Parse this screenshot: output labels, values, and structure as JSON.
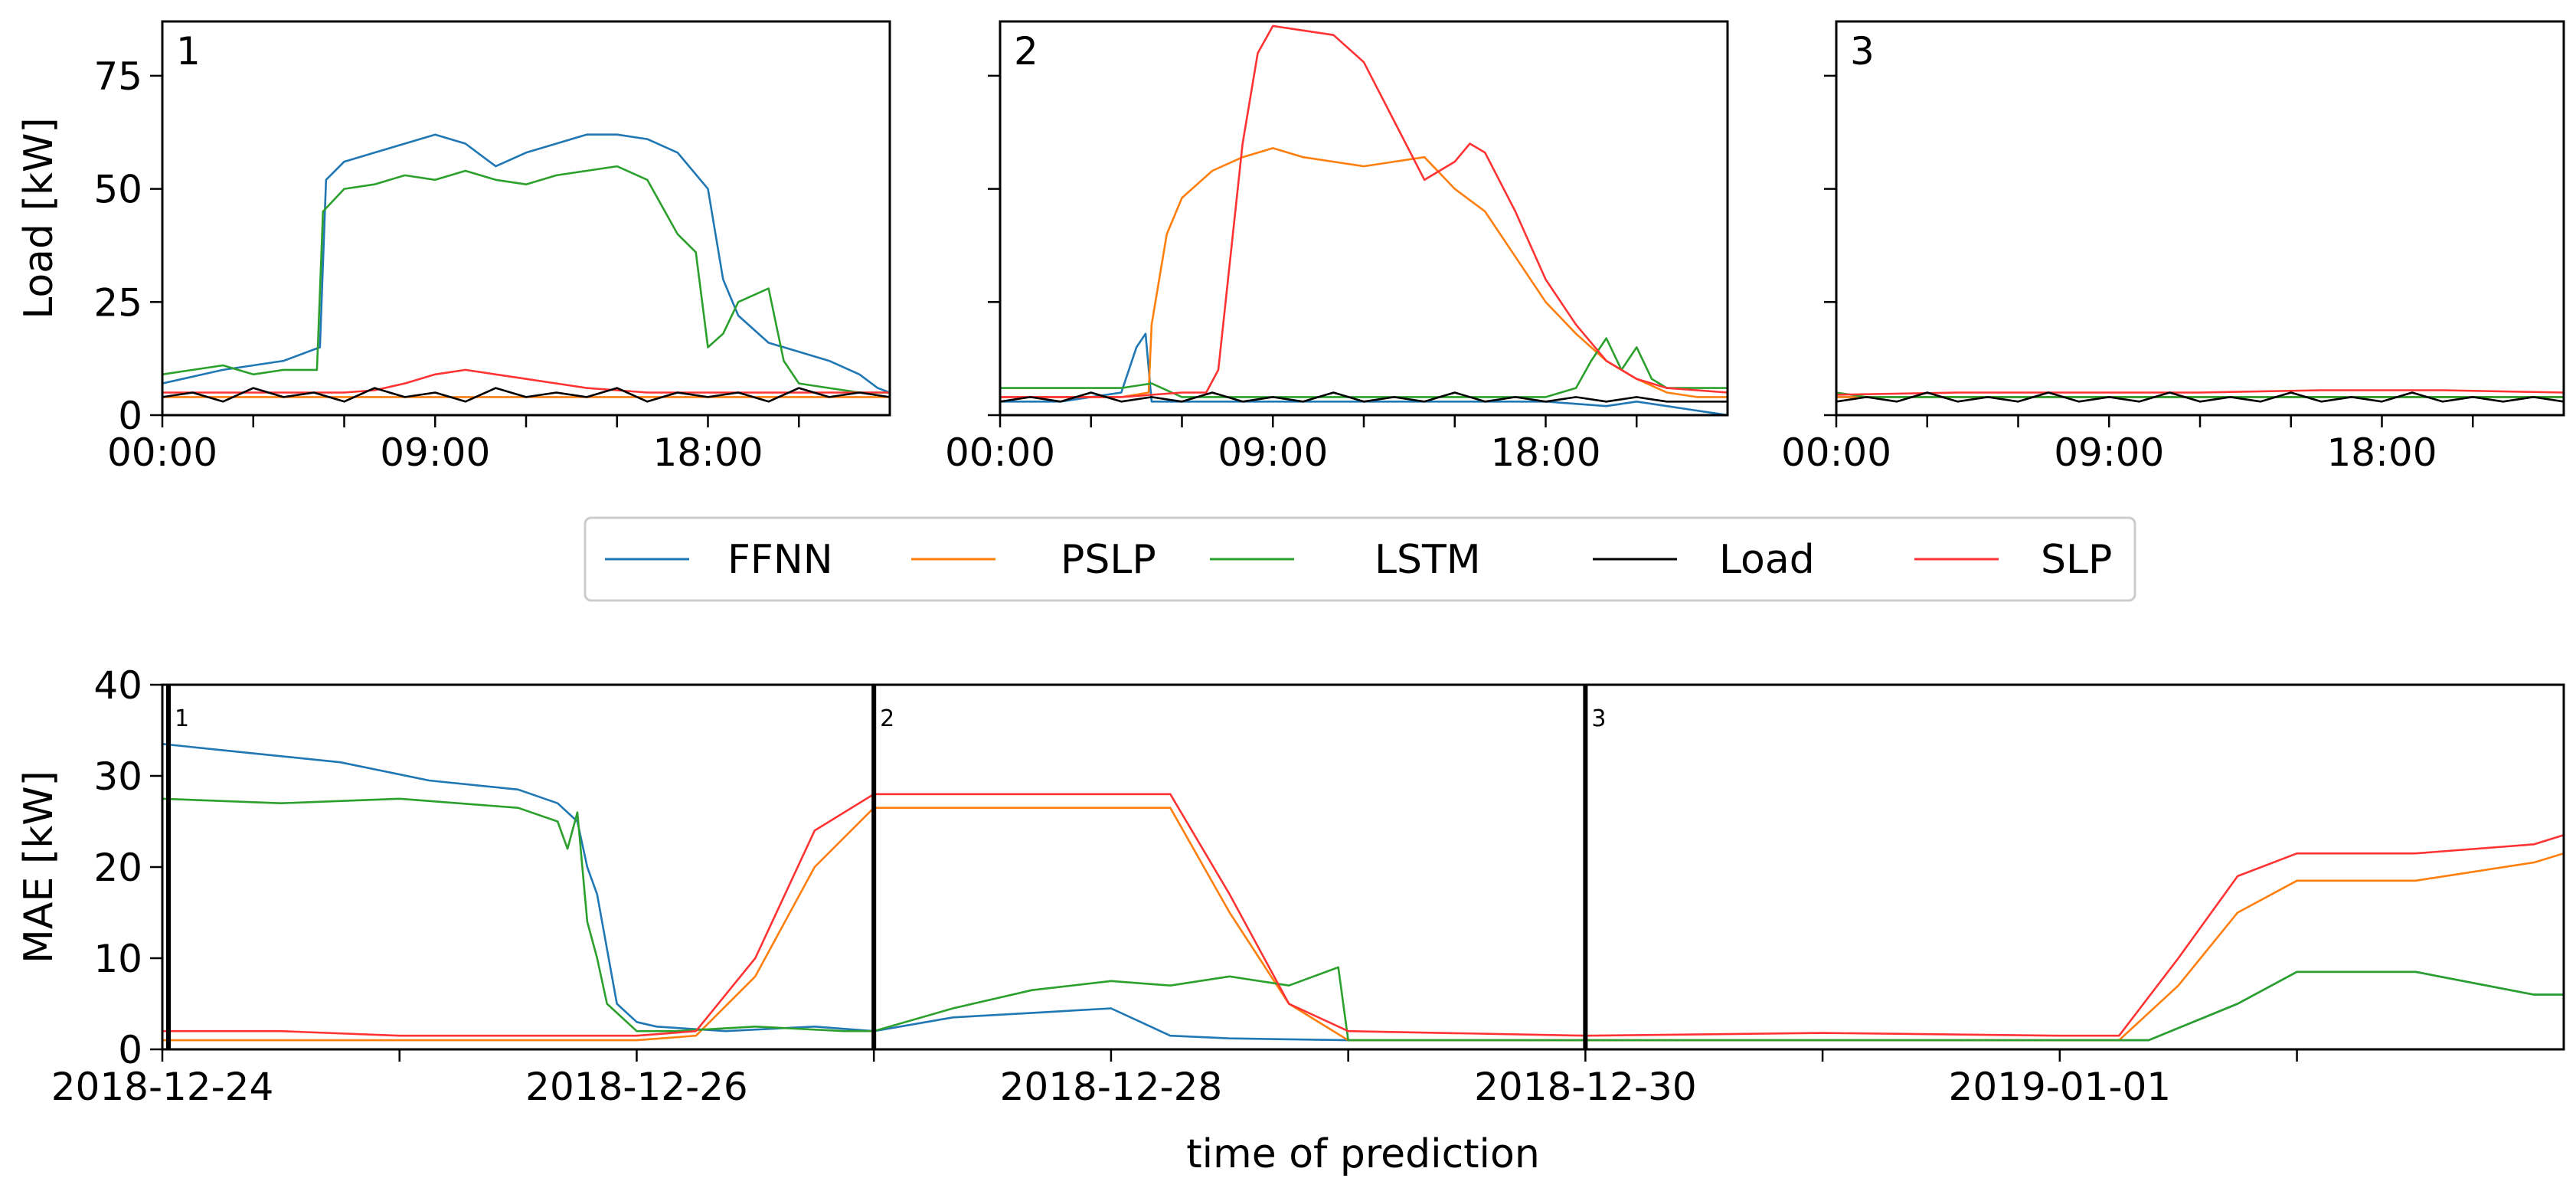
{
  "colors": {
    "FFNN": "#1f77b4",
    "PSLP": "#ff7f0e",
    "LSTM": "#2ca02c",
    "Load": "#000000",
    "SLP": "#ff3333"
  },
  "chart_data": [
    {
      "type": "line",
      "panel": "1",
      "xlim": [
        0,
        24
      ],
      "ylim": [
        0,
        87
      ],
      "xticks": [
        0,
        3,
        6,
        9,
        12,
        15,
        18,
        21
      ],
      "xtick_labels": [
        "00:00",
        "",
        "",
        "09:00",
        "",
        "",
        "18:00",
        ""
      ],
      "yticks": [
        0,
        25,
        50,
        75
      ],
      "ytick_labels": [
        "0",
        "25",
        "50",
        "75"
      ],
      "ylabel": "Load [kW]",
      "series": [
        {
          "name": "FFNN",
          "x": [
            0,
            2,
            4,
            5.2,
            5.4,
            6,
            7,
            8,
            9,
            10,
            11,
            12,
            13,
            14,
            15,
            16,
            17,
            18,
            18.5,
            19,
            20,
            21,
            22,
            23,
            23.6,
            24
          ],
          "y": [
            7,
            10,
            12,
            15,
            52,
            56,
            58,
            60,
            62,
            60,
            55,
            58,
            60,
            62,
            62,
            61,
            58,
            50,
            30,
            22,
            16,
            14,
            12,
            9,
            6,
            5
          ]
        },
        {
          "name": "LSTM",
          "x": [
            0,
            1,
            2,
            3,
            4,
            5.1,
            5.3,
            6,
            7,
            8,
            9,
            10,
            11,
            12,
            13,
            14,
            15,
            16,
            17,
            17.6,
            18,
            18.5,
            19,
            20,
            20.5,
            21,
            22,
            23,
            24
          ],
          "y": [
            9,
            10,
            11,
            9,
            10,
            10,
            45,
            50,
            51,
            53,
            52,
            54,
            52,
            51,
            53,
            54,
            55,
            52,
            40,
            36,
            15,
            18,
            25,
            28,
            12,
            7,
            6,
            5,
            5
          ]
        },
        {
          "name": "SLP",
          "x": [
            0,
            2,
            4,
            6,
            7,
            8,
            9,
            10,
            11,
            12,
            13,
            14,
            15,
            16,
            17,
            18,
            20,
            22,
            24
          ],
          "y": [
            5,
            5,
            5,
            5,
            5.5,
            7,
            9,
            10,
            9,
            8,
            7,
            6,
            5.5,
            5,
            5,
            5,
            5,
            5,
            5
          ]
        },
        {
          "name": "PSLP",
          "x": [
            0,
            4,
            8,
            12,
            16,
            20,
            24
          ],
          "y": [
            4,
            4,
            4,
            4,
            4,
            4,
            4
          ]
        },
        {
          "name": "Load",
          "x": [
            0,
            1,
            2,
            3,
            4,
            5,
            6,
            7,
            8,
            9,
            10,
            11,
            12,
            13,
            14,
            15,
            16,
            17,
            18,
            19,
            20,
            21,
            22,
            23,
            24
          ],
          "y": [
            4,
            5,
            3,
            6,
            4,
            5,
            3,
            6,
            4,
            5,
            3,
            6,
            4,
            5,
            4,
            6,
            3,
            5,
            4,
            5,
            3,
            6,
            4,
            5,
            4
          ]
        }
      ]
    },
    {
      "type": "line",
      "panel": "2",
      "xlim": [
        0,
        24
      ],
      "ylim": [
        0,
        87
      ],
      "xticks": [
        0,
        3,
        6,
        9,
        12,
        15,
        18,
        21
      ],
      "xtick_labels": [
        "00:00",
        "",
        "",
        "09:00",
        "",
        "",
        "18:00",
        ""
      ],
      "yticks": [
        0,
        25,
        50,
        75
      ],
      "ytick_labels": [
        "",
        "",
        "",
        ""
      ],
      "series": [
        {
          "name": "FFNN",
          "x": [
            0,
            2,
            4,
            4.5,
            4.8,
            5,
            6,
            8,
            10,
            12,
            14,
            16,
            18,
            20,
            21,
            22,
            23,
            24
          ],
          "y": [
            3,
            3,
            5,
            15,
            18,
            3,
            3,
            3,
            3,
            3,
            3,
            3,
            3,
            2,
            3,
            2,
            1,
            0
          ]
        },
        {
          "name": "PSLP",
          "x": [
            0,
            4,
            4.9,
            5,
            5.5,
            6,
            7,
            8,
            9,
            10,
            11,
            12,
            13,
            14,
            15,
            16,
            17,
            18,
            19,
            20,
            21,
            22,
            23,
            24
          ],
          "y": [
            4,
            4,
            5,
            20,
            40,
            48,
            54,
            57,
            59,
            57,
            56,
            55,
            56,
            57,
            50,
            45,
            35,
            25,
            18,
            12,
            8,
            5,
            4,
            4
          ]
        },
        {
          "name": "LSTM",
          "x": [
            0,
            4,
            5,
            6,
            8,
            10,
            12,
            14,
            16,
            18,
            19,
            19.5,
            20,
            20.5,
            21,
            21.5,
            22,
            23,
            24
          ],
          "y": [
            6,
            6,
            7,
            4,
            4,
            4,
            4,
            4,
            4,
            4,
            6,
            12,
            17,
            10,
            15,
            8,
            6,
            6,
            6
          ]
        },
        {
          "name": "SLP",
          "x": [
            0,
            2,
            4,
            6,
            6.8,
            7.2,
            8,
            8.5,
            9,
            10,
            11,
            12,
            13,
            14,
            15,
            15.5,
            16,
            17,
            18,
            19,
            20,
            21,
            22,
            24
          ],
          "y": [
            4,
            4,
            4,
            5,
            5,
            10,
            60,
            80,
            86,
            85,
            84,
            78,
            65,
            52,
            56,
            60,
            58,
            45,
            30,
            20,
            12,
            8,
            6,
            5
          ]
        },
        {
          "name": "Load",
          "x": [
            0,
            1,
            2,
            3,
            4,
            5,
            6,
            7,
            8,
            9,
            10,
            11,
            12,
            13,
            14,
            15,
            16,
            17,
            18,
            19,
            20,
            21,
            22,
            23,
            24
          ],
          "y": [
            3,
            4,
            3,
            5,
            3,
            4,
            3,
            5,
            3,
            4,
            3,
            5,
            3,
            4,
            3,
            5,
            3,
            4,
            3,
            4,
            3,
            4,
            3,
            3,
            3
          ]
        }
      ]
    },
    {
      "type": "line",
      "panel": "3",
      "xlim": [
        0,
        24
      ],
      "ylim": [
        0,
        87
      ],
      "xticks": [
        0,
        3,
        6,
        9,
        12,
        15,
        18,
        21
      ],
      "xtick_labels": [
        "00:00",
        "",
        "",
        "09:00",
        "",
        "",
        "18:00",
        ""
      ],
      "yticks": [
        0,
        25,
        50,
        75
      ],
      "ytick_labels": [
        "",
        "",
        "",
        ""
      ],
      "series": [
        {
          "name": "FFNN",
          "x": [
            0,
            6,
            12,
            18,
            24
          ],
          "y": [
            4,
            4,
            4,
            4,
            4
          ]
        },
        {
          "name": "PSLP",
          "x": [
            0,
            6,
            12,
            18,
            24
          ],
          "y": [
            4,
            4,
            4,
            4,
            4
          ]
        },
        {
          "name": "LSTM",
          "x": [
            0,
            1,
            6,
            12,
            18,
            24
          ],
          "y": [
            5,
            4,
            4,
            4,
            4,
            4
          ]
        },
        {
          "name": "SLP",
          "x": [
            0,
            4,
            8,
            12,
            16,
            20,
            24
          ],
          "y": [
            4.5,
            5,
            5,
            5,
            5.5,
            5.5,
            5
          ]
        },
        {
          "name": "Load",
          "x": [
            0,
            1,
            2,
            3,
            4,
            5,
            6,
            7,
            8,
            9,
            10,
            11,
            12,
            13,
            14,
            15,
            16,
            17,
            18,
            19,
            20,
            21,
            22,
            23,
            24
          ],
          "y": [
            3,
            4,
            3,
            5,
            3,
            4,
            3,
            5,
            3,
            4,
            3,
            5,
            3,
            4,
            3,
            5,
            3,
            4,
            3,
            5,
            3,
            4,
            3,
            4,
            3
          ]
        }
      ]
    },
    {
      "type": "line",
      "panel": "bottom",
      "xlim": [
        "2018-12-24",
        "2019-01-03T03:00"
      ],
      "ylim": [
        0,
        40
      ],
      "xticks": [
        "2018-12-24",
        "2018-12-25",
        "2018-12-26",
        "2018-12-27",
        "2018-12-28",
        "2018-12-29",
        "2018-12-30",
        "2018-12-31",
        "2019-01-01",
        "2019-01-02"
      ],
      "xtick_labels": [
        "2018-12-24",
        "",
        "2018-12-26",
        "",
        "2018-12-28",
        "",
        "2018-12-30",
        "",
        "2019-01-01",
        ""
      ],
      "yticks": [
        0,
        10,
        20,
        30,
        40
      ],
      "ytick_labels": [
        "0",
        "10",
        "20",
        "30",
        "40"
      ],
      "xlabel": "time of prediction",
      "ylabel": "MAE [kW]",
      "markers": [
        {
          "x": "2018-12-24",
          "label": "1"
        },
        {
          "x": "2018-12-27",
          "label": "2"
        },
        {
          "x": "2018-12-30",
          "label": "3"
        }
      ],
      "series": [
        {
          "name": "FFNN",
          "x": [
            "2018-12-24T00:00",
            "2018-12-24T09:00",
            "2018-12-24T18:00",
            "2018-12-25T03:00",
            "2018-12-25T12:00",
            "2018-12-25T16:00",
            "2018-12-25T18:00",
            "2018-12-25T19:00",
            "2018-12-25T20:00",
            "2018-12-25T22:00",
            "2018-12-26T00:00",
            "2018-12-26T02:00",
            "2018-12-26T09:00",
            "2018-12-26T18:00",
            "2018-12-27T00:00",
            "2018-12-27T08:00",
            "2018-12-27T16:00",
            "2018-12-28T00:00",
            "2018-12-28T03:00",
            "2018-12-28T06:00",
            "2018-12-28T12:00",
            "2018-12-29T00:00",
            "2018-12-30T00:00",
            "2018-12-31T00:00",
            "2019-01-01T00:00",
            "2019-01-01T09:00",
            "2019-01-01T18:00",
            "2019-01-02T00:00",
            "2019-01-02T12:00",
            "2019-01-03T00:00",
            "2019-01-03T03:00"
          ],
          "y": [
            33.5,
            32.5,
            31.5,
            29.5,
            28.5,
            27,
            25,
            20,
            17,
            5,
            3,
            2.5,
            2,
            2.5,
            2,
            3.5,
            4,
            4.5,
            3,
            1.5,
            1.2,
            1,
            1,
            1,
            1,
            1,
            5,
            8.5,
            8.5,
            6,
            6
          ]
        },
        {
          "name": "LSTM",
          "x": [
            "2018-12-24T00:00",
            "2018-12-24T12:00",
            "2018-12-25T00:00",
            "2018-12-25T12:00",
            "2018-12-25T16:00",
            "2018-12-25T17:00",
            "2018-12-25T18:00",
            "2018-12-25T19:00",
            "2018-12-25T20:00",
            "2018-12-25T21:00",
            "2018-12-26T00:00",
            "2018-12-26T04:00",
            "2018-12-26T12:00",
            "2018-12-26T21:00",
            "2018-12-27T00:00",
            "2018-12-27T08:00",
            "2018-12-27T16:00",
            "2018-12-28T00:00",
            "2018-12-28T06:00",
            "2018-12-28T12:00",
            "2018-12-28T18:00",
            "2018-12-28T23:00",
            "2018-12-29T00:00",
            "2018-12-30T00:00",
            "2018-12-31T00:00",
            "2019-01-01T00:00",
            "2019-01-01T09:00",
            "2019-01-01T18:00",
            "2019-01-02T00:00",
            "2019-01-02T12:00",
            "2019-01-03T00:00",
            "2019-01-03T03:00"
          ],
          "y": [
            27.5,
            27,
            27.5,
            26.5,
            25,
            22,
            26,
            14,
            10,
            5,
            2,
            2,
            2.5,
            2,
            2,
            4.5,
            6.5,
            7.5,
            7,
            8,
            7,
            9,
            1,
            1,
            1,
            1,
            1,
            5,
            8.5,
            8.5,
            6,
            6
          ]
        },
        {
          "name": "PSLP",
          "x": [
            "2018-12-24T00:00",
            "2018-12-25T00:00",
            "2018-12-26T00:00",
            "2018-12-26T06:00",
            "2018-12-26T12:00",
            "2018-12-26T18:00",
            "2018-12-27T00:00",
            "2018-12-28T00:00",
            "2018-12-28T06:00",
            "2018-12-28T12:00",
            "2018-12-28T18:00",
            "2018-12-29T00:00",
            "2018-12-30T00:00",
            "2018-12-31T00:00",
            "2019-01-01T00:00",
            "2019-01-01T06:00",
            "2019-01-01T12:00",
            "2019-01-01T18:00",
            "2019-01-02T00:00",
            "2019-01-02T12:00",
            "2019-01-03T00:00",
            "2019-01-03T03:00"
          ],
          "y": [
            1,
            1,
            1,
            1.5,
            8,
            20,
            26.5,
            26.5,
            26.5,
            15,
            5,
            1,
            1,
            1,
            1,
            1,
            7,
            15,
            18.5,
            18.5,
            20.5,
            21.5
          ]
        },
        {
          "name": "SLP",
          "x": [
            "2018-12-24T00:00",
            "2018-12-24T12:00",
            "2018-12-25T00:00",
            "2018-12-26T00:00",
            "2018-12-26T06:00",
            "2018-12-26T12:00",
            "2018-12-26T18:00",
            "2018-12-27T00:00",
            "2018-12-28T00:00",
            "2018-12-28T06:00",
            "2018-12-28T12:00",
            "2018-12-28T18:00",
            "2018-12-29T00:00",
            "2018-12-30T00:00",
            "2018-12-31T00:00",
            "2019-01-01T00:00",
            "2019-01-01T06:00",
            "2019-01-01T12:00",
            "2019-01-01T18:00",
            "2019-01-02T00:00",
            "2019-01-02T12:00",
            "2019-01-03T00:00",
            "2019-01-03T03:00"
          ],
          "y": [
            2,
            2,
            1.5,
            1.5,
            2,
            10,
            24,
            28,
            28,
            28,
            17,
            5,
            2,
            1.5,
            1.8,
            1.5,
            1.5,
            10,
            19,
            21.5,
            21.5,
            22.5,
            23.5
          ]
        }
      ]
    }
  ],
  "legend": {
    "position": "center",
    "items": [
      {
        "name": "FFNN",
        "label": "FFNN"
      },
      {
        "name": "PSLP",
        "label": "PSLP"
      },
      {
        "name": "LSTM",
        "label": "LSTM"
      },
      {
        "name": "Load",
        "label": "Load"
      },
      {
        "name": "SLP",
        "label": "SLP"
      }
    ]
  }
}
